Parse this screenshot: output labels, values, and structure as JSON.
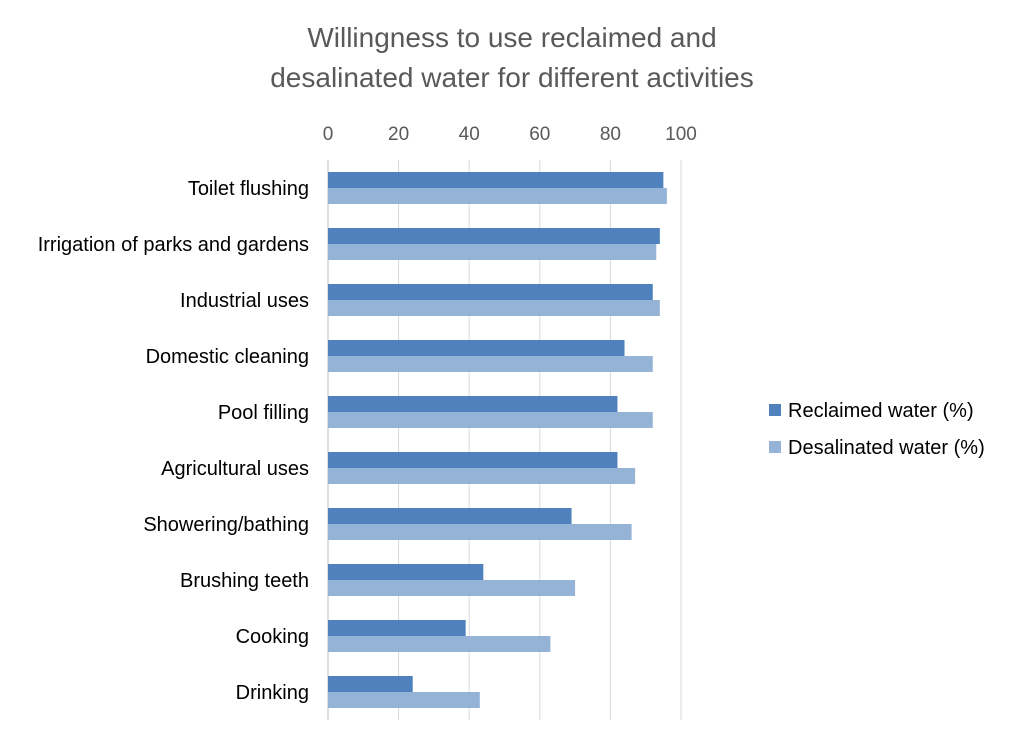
{
  "chart_data": {
    "type": "bar",
    "orientation": "horizontal",
    "title_lines": [
      "Willingness to use reclaimed and",
      "desalinated water for different activities"
    ],
    "xlim": [
      0,
      100
    ],
    "x_ticks": [
      0,
      20,
      40,
      60,
      80,
      100
    ],
    "x_axis_position": "top",
    "grid": true,
    "legend_position": "right",
    "categories": [
      "Toilet flushing",
      "Irrigation of parks and gardens",
      "Industrial uses",
      "Domestic cleaning",
      "Pool filling",
      "Agricultural uses",
      "Showering/bathing",
      "Brushing teeth",
      "Cooking",
      "Drinking"
    ],
    "series": [
      {
        "name": "Reclaimed water (%)",
        "color": "#4f81bd",
        "values": [
          95,
          94,
          92,
          84,
          82,
          82,
          69,
          44,
          39,
          24
        ]
      },
      {
        "name": "Desalinated water (%)",
        "color": "#95b3d7",
        "values": [
          96,
          93,
          94,
          92,
          92,
          87,
          86,
          70,
          63,
          43
        ]
      }
    ]
  }
}
